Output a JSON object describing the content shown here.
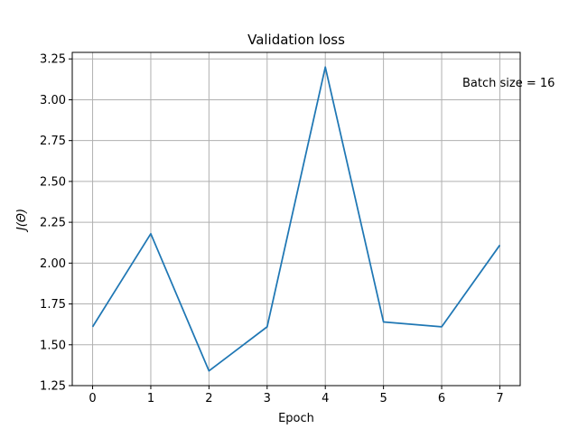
{
  "chart_data": {
    "type": "line",
    "title": "Validation loss",
    "xlabel": "Epoch",
    "ylabel": "J(Θ)",
    "x": [
      0,
      1,
      2,
      3,
      4,
      5,
      6,
      7
    ],
    "series": [
      {
        "values": [
          1.61,
          2.18,
          1.34,
          1.61,
          3.2,
          1.64,
          1.61,
          2.11
        ],
        "color": "#1f77b4"
      }
    ],
    "xlim": [
      -0.35,
      7.35
    ],
    "ylim": [
      1.25,
      3.29
    ],
    "xticks": [
      0,
      1,
      2,
      3,
      4,
      5,
      6,
      7
    ],
    "xtick_labels": [
      "0",
      "1",
      "2",
      "3",
      "4",
      "5",
      "6",
      "7"
    ],
    "yticks": [
      1.25,
      1.5,
      1.75,
      2.0,
      2.25,
      2.5,
      2.75,
      3.0,
      3.25
    ],
    "ytick_labels": [
      "1.25",
      "1.50",
      "1.75",
      "2.00",
      "2.25",
      "2.50",
      "2.75",
      "3.00",
      "3.25"
    ],
    "grid": true,
    "annotation": "Batch size = 16",
    "colors": {
      "line": "#1f77b4",
      "grid": "#b0b0b0",
      "axes": "#000000"
    }
  }
}
